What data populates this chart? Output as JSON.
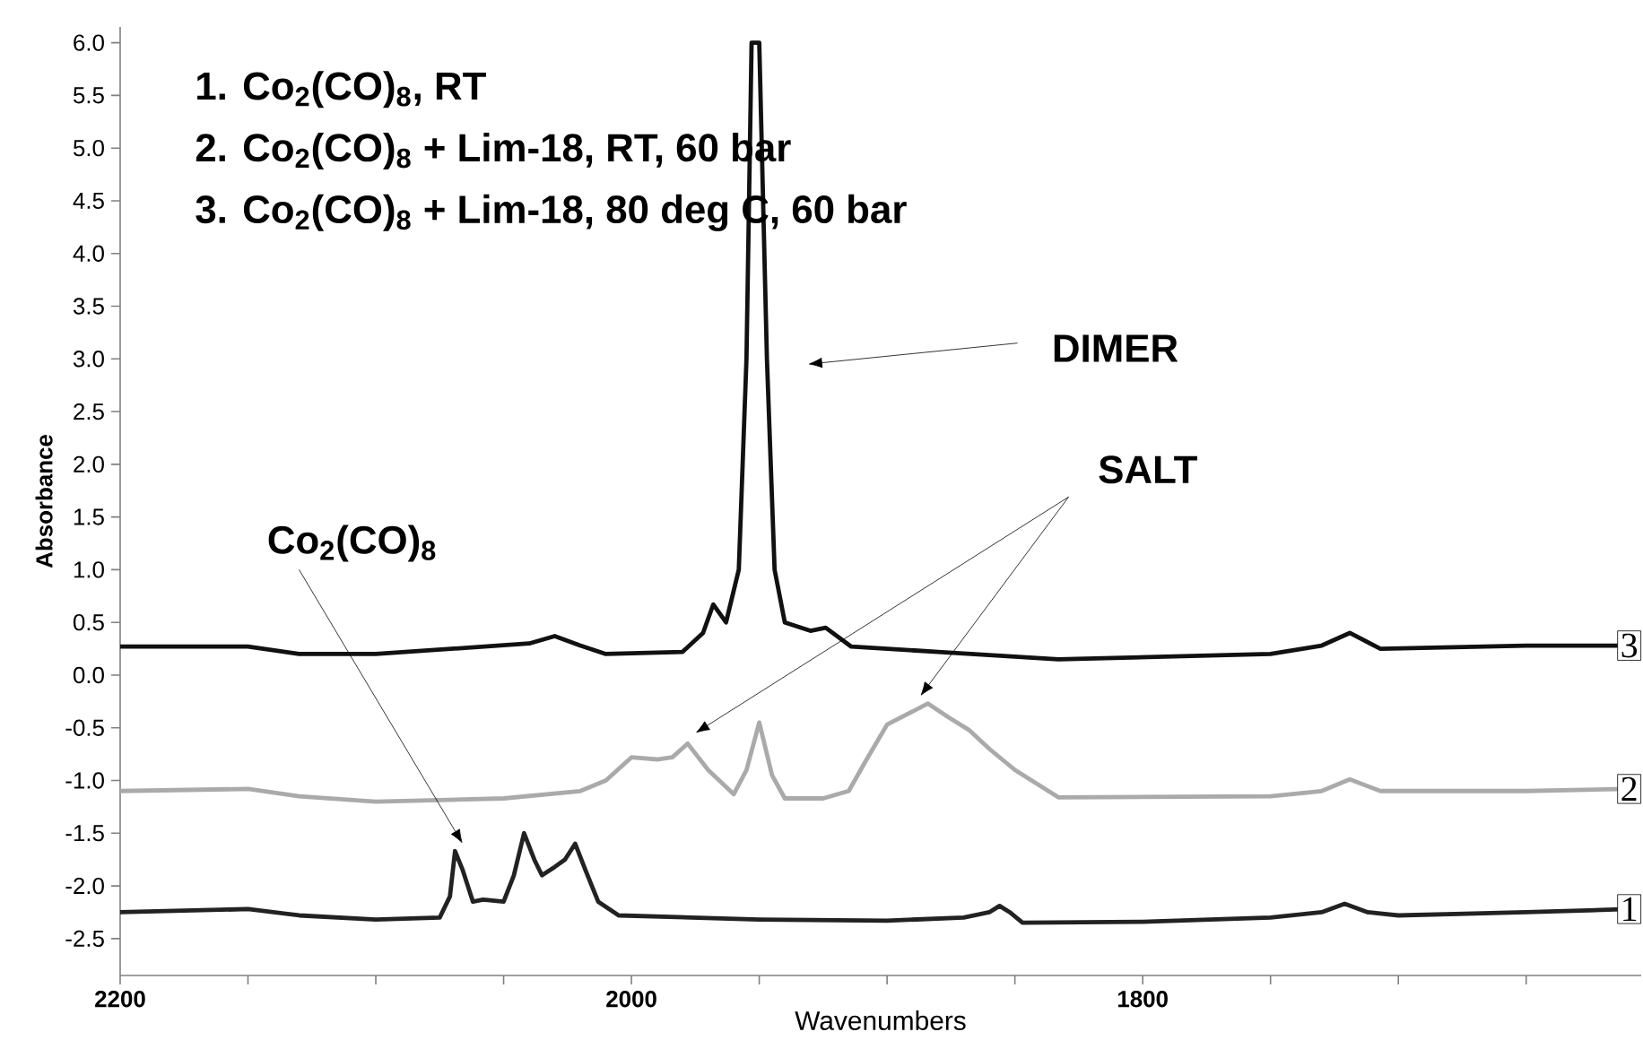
{
  "chart_data": {
    "type": "line",
    "xlabel": "Wavenumbers",
    "ylabel": "Absorbance",
    "xlim": [
      2200,
      1605
    ],
    "ylim": [
      -2.85,
      6.15
    ],
    "xticks": [
      2200,
      {
        "value": 2150,
        "label": null
      },
      {
        "value": 2100,
        "label": null
      },
      {
        "value": 2050,
        "label": null
      },
      2000,
      {
        "value": 1950,
        "label": null
      },
      {
        "value": 1900,
        "label": null
      },
      {
        "value": 1850,
        "label": null
      },
      1800,
      {
        "value": 1750,
        "label": null
      },
      {
        "value": 1700,
        "label": null
      },
      {
        "value": 1650,
        "label": null
      }
    ],
    "yticks": [
      {
        "value": -2.5,
        "label": "-2.5"
      },
      {
        "value": -2,
        "label": "-2.0"
      },
      {
        "value": -1.5,
        "label": "-1.5"
      },
      {
        "value": -1,
        "label": "-1.0"
      },
      {
        "value": -0.5,
        "label": "-0.5"
      },
      {
        "value": 0,
        "label": "0.0"
      },
      {
        "value": 0.5,
        "label": "0.5"
      },
      {
        "value": 1,
        "label": "1.0"
      },
      {
        "value": 1.5,
        "label": "1.5"
      },
      {
        "value": 2,
        "label": "2.0"
      },
      {
        "value": 2.5,
        "label": "2.5"
      },
      {
        "value": 3,
        "label": "3.0"
      },
      {
        "value": 3.5,
        "label": "3.5"
      },
      {
        "value": 4,
        "label": "4.0"
      },
      {
        "value": 4.5,
        "label": "4.5"
      },
      {
        "value": 5,
        "label": "5.0"
      },
      {
        "value": 5.5,
        "label": "5.5"
      },
      {
        "value": 6,
        "label": "6.0"
      }
    ],
    "series": [
      {
        "name": "1",
        "color": "#222222",
        "x": [
          2200,
          2150,
          2130,
          2100,
          2075,
          2071,
          2069,
          2066,
          2062,
          2058,
          2050,
          2046,
          2042,
          2038,
          2035,
          2030,
          2026,
          2022,
          2018,
          2013,
          2005,
          1950,
          1900,
          1870,
          1860,
          1856,
          1852,
          1847,
          1800,
          1750,
          1730,
          1721,
          1712,
          1700,
          1650,
          1610
        ],
        "values": [
          -2.25,
          -2.22,
          -2.28,
          -2.32,
          -2.3,
          -2.1,
          -1.67,
          -1.85,
          -2.15,
          -2.13,
          -2.15,
          -1.9,
          -1.5,
          -1.75,
          -1.9,
          -1.82,
          -1.75,
          -1.6,
          -1.85,
          -2.15,
          -2.28,
          -2.32,
          -2.33,
          -2.3,
          -2.25,
          -2.19,
          -2.25,
          -2.35,
          -2.34,
          -2.3,
          -2.25,
          -2.17,
          -2.25,
          -2.28,
          -2.25,
          -2.22
        ]
      },
      {
        "name": "2",
        "color": "#aaaaaa",
        "x": [
          2200,
          2150,
          2130,
          2100,
          2050,
          2020,
          2010,
          2000,
          1990,
          1984,
          1978,
          1970,
          1960,
          1955,
          1950,
          1945,
          1940,
          1925,
          1915,
          1908,
          1900,
          1884,
          1876,
          1868,
          1860,
          1850,
          1833,
          1750,
          1730,
          1719,
          1707,
          1650,
          1610
        ],
        "values": [
          -1.1,
          -1.08,
          -1.15,
          -1.2,
          -1.17,
          -1.1,
          -1.0,
          -0.78,
          -0.8,
          -0.78,
          -0.65,
          -0.9,
          -1.13,
          -0.9,
          -0.45,
          -0.95,
          -1.17,
          -1.17,
          -1.1,
          -0.8,
          -0.47,
          -0.27,
          -0.4,
          -0.52,
          -0.7,
          -0.9,
          -1.16,
          -1.15,
          -1.1,
          -0.99,
          -1.1,
          -1.1,
          -1.08
        ]
      },
      {
        "name": "3",
        "color": "#111111",
        "x": [
          2200,
          2150,
          2130,
          2100,
          2040,
          2030,
          2020,
          2010,
          1980,
          1972,
          1968,
          1963,
          1958,
          1955,
          1953,
          1950,
          1947,
          1944,
          1940,
          1930,
          1924,
          1914,
          1880,
          1833,
          1750,
          1730,
          1719,
          1707,
          1650,
          1610
        ],
        "values": [
          0.27,
          0.27,
          0.2,
          0.2,
          0.3,
          0.37,
          0.28,
          0.2,
          0.22,
          0.4,
          0.67,
          0.5,
          1.0,
          3.0,
          6.0,
          6.0,
          3.0,
          1.0,
          0.5,
          0.42,
          0.45,
          0.27,
          0.22,
          0.15,
          0.2,
          0.28,
          0.4,
          0.25,
          0.28,
          0.28
        ]
      }
    ],
    "annotations": [
      "1. Co$_{2}$(CO)$_{8}$, RT",
      "2. Co$_{2}$(CO)$_{8}$ + Lim-18, RT, 60 bar",
      "3. Co$_{2}$(CO)$_{8}$ + Lim-18, 80 deg C,  60 bar",
      {
        "text": "Co$_{2}$(CO)$_{8}$",
        "x": 2066,
        "y": -1.6
      },
      "DIMER",
      "SALT"
    ],
    "grid": false,
    "marker": "none",
    "line_style": "solid"
  }
}
